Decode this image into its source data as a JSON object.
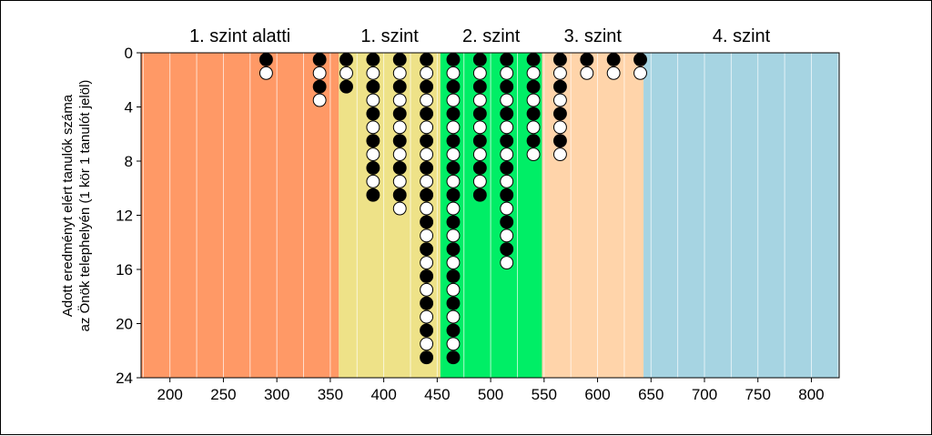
{
  "chart_data": {
    "type": "scatter",
    "ylabel_lines": [
      "Adott eredményt elért tanulók száma",
      "az Önök telephelyén (1 kör 1 tanulót jelöl)"
    ],
    "xlim": [
      173,
      826
    ],
    "ylim": [
      0,
      24
    ],
    "y_inverted": true,
    "xticks": [
      200,
      250,
      300,
      350,
      400,
      450,
      500,
      550,
      600,
      650,
      700,
      750,
      800
    ],
    "yticks": [
      0,
      4,
      8,
      12,
      16,
      20,
      24
    ],
    "minor_x_gridlines_every": 25,
    "levels": [
      {
        "label": "1. szint alatti",
        "from": 173,
        "to": 358,
        "color": "#ff9966"
      },
      {
        "label": "1. szint",
        "from": 358,
        "to": 453,
        "color": "#eee288"
      },
      {
        "label": "2. szint",
        "from": 453,
        "to": 548,
        "color": "#00ee66"
      },
      {
        "label": "3. szint",
        "from": 548,
        "to": 643,
        "color": "#ffd4aa"
      },
      {
        "label": "4. szint",
        "from": 643,
        "to": 826,
        "color": "#a6d4e2"
      }
    ],
    "marker_colors": [
      "#000000",
      "#ffffff"
    ],
    "columns": [
      {
        "x": 290,
        "count": 2
      },
      {
        "x": 340,
        "count": 4
      },
      {
        "x": 365,
        "count": 3
      },
      {
        "x": 390,
        "count": 11
      },
      {
        "x": 415,
        "count": 12
      },
      {
        "x": 440,
        "count": 23
      },
      {
        "x": 465,
        "count": 23
      },
      {
        "x": 490,
        "count": 11
      },
      {
        "x": 515,
        "count": 16
      },
      {
        "x": 540,
        "count": 8
      },
      {
        "x": 565,
        "count": 8
      },
      {
        "x": 590,
        "count": 2
      },
      {
        "x": 615,
        "count": 2
      },
      {
        "x": 640,
        "count": 2
      }
    ]
  }
}
